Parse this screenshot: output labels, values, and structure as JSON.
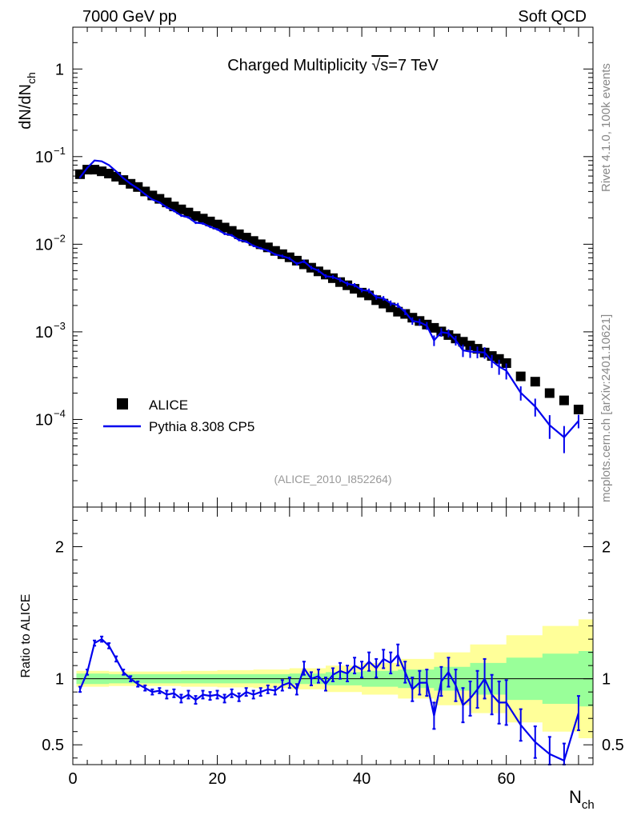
{
  "header": {
    "left": "7000 GeV pp",
    "right": "Soft QCD"
  },
  "side": {
    "rivet": "Rivet 4.1.0,  100k events",
    "site": "mcplots.cern.ch [arXiv:2401.10621]"
  },
  "chart_data": {
    "type": "scatter",
    "title": "Charged Multiplicity √s=7 TeV",
    "title_prefix": "Charged Multiplicity ",
    "title_sqrt": "√s",
    "title_suffix": "=7 TeV",
    "analysis_tag": "(ALICE_2010_I852264)",
    "ylabel": "dN/dN",
    "ylabel_sub": "ch",
    "xlabel": "N",
    "xlabel_sub": "ch",
    "ratio_ylabel": "Ratio to ALICE",
    "xlim": [
      0,
      72
    ],
    "ylim_log": [
      1e-05,
      3
    ],
    "ratio_ylim": [
      0.35,
      2.3
    ],
    "x_ticks": [
      0,
      20,
      40,
      60
    ],
    "y_ticks": [
      {
        "value": 1,
        "base": "1",
        "exp": ""
      },
      {
        "value": 0.1,
        "base": "10",
        "exp": "−1"
      },
      {
        "value": 0.01,
        "base": "10",
        "exp": "−2"
      },
      {
        "value": 0.001,
        "base": "10",
        "exp": "−3"
      },
      {
        "value": 0.0001,
        "base": "10",
        "exp": "−4"
      }
    ],
    "ratio_ticks": [
      {
        "value": 0.5,
        "label": "0.5"
      },
      {
        "value": 1,
        "label": "1"
      },
      {
        "value": 2,
        "label": "2"
      }
    ],
    "legend": [
      {
        "name": "ALICE",
        "marker": "square",
        "color": "#000000"
      },
      {
        "name": "Pythia 8.308 CP5",
        "marker": "line",
        "color": "#0000ee"
      }
    ],
    "legend_position": "lower-left",
    "series": [
      {
        "name": "ALICE",
        "x": [
          1,
          2,
          3,
          4,
          5,
          6,
          7,
          8,
          9,
          10,
          11,
          12,
          13,
          14,
          15,
          16,
          17,
          18,
          19,
          20,
          21,
          22,
          23,
          24,
          25,
          26,
          27,
          28,
          29,
          30,
          31,
          32,
          33,
          34,
          35,
          36,
          37,
          38,
          39,
          40,
          41,
          42,
          43,
          44,
          45,
          46,
          47,
          48,
          49,
          50,
          51,
          52,
          53,
          54,
          55,
          56,
          57,
          58,
          59,
          60,
          62,
          64,
          66,
          68,
          70
        ],
        "values": [
          0.063,
          0.071,
          0.071,
          0.068,
          0.064,
          0.059,
          0.054,
          0.049,
          0.045,
          0.04,
          0.036,
          0.033,
          0.03,
          0.027,
          0.025,
          0.023,
          0.021,
          0.0196,
          0.0182,
          0.0168,
          0.0155,
          0.0142,
          0.013,
          0.0119,
          0.0109,
          0.01,
          0.0092,
          0.0084,
          0.0077,
          0.0071,
          0.0065,
          0.0059,
          0.0054,
          0.0049,
          0.0045,
          0.0041,
          0.0037,
          0.0034,
          0.0031,
          0.0028,
          0.0026,
          0.0023,
          0.0021,
          0.0019,
          0.0017,
          0.0016,
          0.00145,
          0.00133,
          0.00121,
          0.00111,
          0.00101,
          0.00092,
          0.00084,
          0.00077,
          0.0007,
          0.00064,
          0.00058,
          0.00053,
          0.00049,
          0.00044,
          0.00031,
          0.00027,
          0.0002,
          0.000165,
          0.00013
        ]
      },
      {
        "name": "Pythia 8.308 CP5",
        "x": [
          1,
          2,
          3,
          4,
          5,
          6,
          7,
          8,
          9,
          10,
          11,
          12,
          13,
          14,
          15,
          16,
          17,
          18,
          19,
          20,
          21,
          22,
          23,
          24,
          25,
          26,
          27,
          28,
          29,
          30,
          31,
          32,
          33,
          34,
          35,
          36,
          37,
          38,
          39,
          40,
          41,
          42,
          43,
          44,
          45,
          46,
          47,
          48,
          49,
          50,
          51,
          52,
          53,
          54,
          55,
          56,
          57,
          58,
          59,
          60,
          62,
          64,
          66,
          68,
          70
        ],
        "ratio": [
          0.92,
          1.05,
          1.27,
          1.3,
          1.25,
          1.15,
          1.05,
          1.0,
          0.96,
          0.93,
          0.9,
          0.91,
          0.88,
          0.89,
          0.85,
          0.88,
          0.84,
          0.88,
          0.87,
          0.88,
          0.85,
          0.89,
          0.86,
          0.9,
          0.88,
          0.9,
          0.92,
          0.91,
          0.95,
          0.97,
          0.92,
          1.08,
          1.0,
          1.02,
          0.96,
          1.03,
          1.06,
          1.04,
          1.1,
          1.07,
          1.13,
          1.08,
          1.15,
          1.12,
          1.18,
          1.05,
          0.92,
          0.97,
          0.97,
          0.72,
          0.98,
          1.05,
          0.95,
          0.8,
          0.85,
          0.92,
          1.0,
          0.88,
          0.82,
          0.82,
          0.65,
          0.52,
          0.43,
          0.38,
          0.74
        ],
        "ratio_err": [
          0.02,
          0.02,
          0.02,
          0.02,
          0.02,
          0.02,
          0.02,
          0.02,
          0.02,
          0.02,
          0.02,
          0.02,
          0.03,
          0.03,
          0.03,
          0.03,
          0.03,
          0.03,
          0.03,
          0.03,
          0.03,
          0.03,
          0.03,
          0.03,
          0.03,
          0.03,
          0.03,
          0.03,
          0.04,
          0.04,
          0.04,
          0.05,
          0.05,
          0.05,
          0.05,
          0.05,
          0.06,
          0.06,
          0.06,
          0.06,
          0.07,
          0.07,
          0.07,
          0.08,
          0.08,
          0.08,
          0.09,
          0.09,
          0.1,
          0.1,
          0.11,
          0.11,
          0.12,
          0.13,
          0.13,
          0.14,
          0.15,
          0.15,
          0.16,
          0.17,
          0.12,
          0.12,
          0.13,
          0.13,
          0.13
        ]
      }
    ],
    "band_x": [
      1,
      5,
      10,
      15,
      20,
      25,
      30,
      35,
      40,
      45,
      50,
      55,
      60,
      65,
      70,
      72
    ],
    "band_green": [
      0.04,
      0.035,
      0.035,
      0.035,
      0.035,
      0.035,
      0.04,
      0.05,
      0.06,
      0.07,
      0.09,
      0.12,
      0.16,
      0.19,
      0.21,
      0.21
    ],
    "band_yellow": [
      0.06,
      0.055,
      0.055,
      0.06,
      0.065,
      0.07,
      0.08,
      0.1,
      0.12,
      0.15,
      0.2,
      0.26,
      0.33,
      0.4,
      0.45,
      0.45
    ]
  }
}
